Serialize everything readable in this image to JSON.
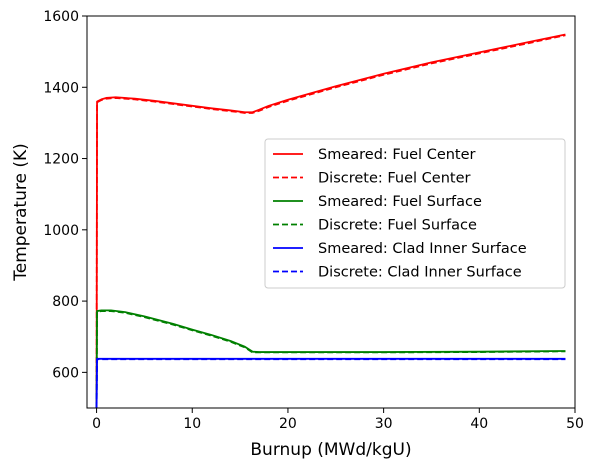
{
  "chart_data": {
    "type": "line",
    "title": "",
    "xlabel": "Burnup (MWd/kgU)",
    "ylabel": "Temperature (K)",
    "xlim": [
      -1,
      50
    ],
    "ylim": [
      500,
      1600
    ],
    "xticks": [
      0,
      10,
      20,
      30,
      40,
      50
    ],
    "yticks": [
      600,
      800,
      1000,
      1200,
      1400,
      1600
    ],
    "xtick_labels": [
      "0",
      "10",
      "20",
      "30",
      "40",
      "50"
    ],
    "ytick_labels": [
      "600",
      "800",
      "1000",
      "1200",
      "1400",
      "1600"
    ],
    "grid": false,
    "legend_position": "center-right",
    "series": [
      {
        "name": "Smeared: Fuel Center",
        "color": "#ff0000",
        "dash": "solid",
        "points": [
          [
            0,
            500
          ],
          [
            0.05,
            1360
          ],
          [
            0.5,
            1366
          ],
          [
            1,
            1370
          ],
          [
            2,
            1372
          ],
          [
            4,
            1368
          ],
          [
            6,
            1362
          ],
          [
            8,
            1355
          ],
          [
            10,
            1348
          ],
          [
            12,
            1341
          ],
          [
            14,
            1335
          ],
          [
            15.5,
            1330
          ],
          [
            16.3,
            1330
          ],
          [
            17,
            1337
          ],
          [
            18,
            1348
          ],
          [
            20,
            1365
          ],
          [
            25,
            1403
          ],
          [
            30,
            1438
          ],
          [
            35,
            1470
          ],
          [
            40,
            1498
          ],
          [
            45,
            1526
          ],
          [
            49,
            1548
          ]
        ]
      },
      {
        "name": "Discrete: Fuel Center",
        "color": "#ff0000",
        "dash": "dashed",
        "points": [
          [
            0,
            500
          ],
          [
            0.05,
            1358
          ],
          [
            0.5,
            1364
          ],
          [
            1,
            1368
          ],
          [
            2,
            1370
          ],
          [
            4,
            1366
          ],
          [
            6,
            1360
          ],
          [
            8,
            1353
          ],
          [
            10,
            1346
          ],
          [
            12,
            1339
          ],
          [
            14,
            1333
          ],
          [
            15.5,
            1328
          ],
          [
            16.3,
            1328
          ],
          [
            17,
            1334
          ],
          [
            18,
            1345
          ],
          [
            20,
            1362
          ],
          [
            25,
            1400
          ],
          [
            30,
            1435
          ],
          [
            35,
            1467
          ],
          [
            40,
            1495
          ],
          [
            45,
            1523
          ],
          [
            49,
            1546
          ]
        ]
      },
      {
        "name": "Smeared: Fuel Surface",
        "color": "#008000",
        "dash": "solid",
        "points": [
          [
            0,
            500
          ],
          [
            0.05,
            772
          ],
          [
            0.5,
            774
          ],
          [
            1.5,
            774
          ],
          [
            3,
            769
          ],
          [
            5,
            757
          ],
          [
            8,
            736
          ],
          [
            10,
            720
          ],
          [
            12,
            705
          ],
          [
            14,
            688
          ],
          [
            15.5,
            672
          ],
          [
            16.3,
            658
          ],
          [
            17,
            657
          ],
          [
            20,
            657
          ],
          [
            30,
            657
          ],
          [
            40,
            658
          ],
          [
            49,
            660
          ]
        ]
      },
      {
        "name": "Discrete: Fuel Surface",
        "color": "#008000",
        "dash": "dashed",
        "points": [
          [
            0,
            500
          ],
          [
            0.05,
            770
          ],
          [
            0.5,
            772
          ],
          [
            1.5,
            772
          ],
          [
            3,
            767
          ],
          [
            5,
            755
          ],
          [
            8,
            734
          ],
          [
            10,
            718
          ],
          [
            12,
            703
          ],
          [
            14,
            686
          ],
          [
            15.5,
            670
          ],
          [
            16.3,
            656
          ],
          [
            17,
            656
          ],
          [
            20,
            656
          ],
          [
            30,
            656
          ],
          [
            40,
            657
          ],
          [
            49,
            659
          ]
        ]
      },
      {
        "name": "Smeared: Clad Inner Surface",
        "color": "#0000ff",
        "dash": "solid",
        "points": [
          [
            0,
            500
          ],
          [
            0.05,
            638
          ],
          [
            5,
            638
          ],
          [
            10,
            638
          ],
          [
            20,
            638
          ],
          [
            30,
            638
          ],
          [
            40,
            638
          ],
          [
            49,
            638
          ]
        ]
      },
      {
        "name": "Discrete: Clad Inner Surface",
        "color": "#0000ff",
        "dash": "dashed",
        "points": [
          [
            0,
            500
          ],
          [
            0.05,
            637
          ],
          [
            5,
            637
          ],
          [
            10,
            637
          ],
          [
            20,
            637
          ],
          [
            30,
            637
          ],
          [
            40,
            637
          ],
          [
            49,
            637
          ]
        ]
      }
    ]
  }
}
